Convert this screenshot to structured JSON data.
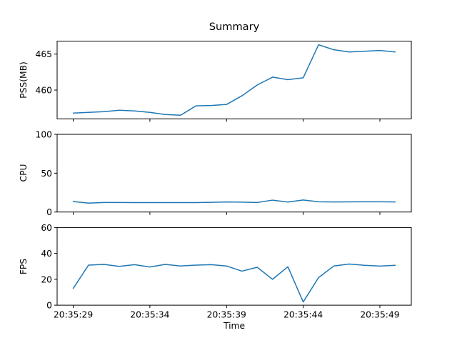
{
  "figure": {
    "background": "#ffffff",
    "text_color": "#000000"
  },
  "chart_data": {
    "type": "line",
    "title": "Summary",
    "xlabel": "Time",
    "grid": false,
    "legend": null,
    "line_color": "#1f77b4",
    "x_times": [
      "20:35:29",
      "20:35:30",
      "20:35:31",
      "20:35:32",
      "20:35:33",
      "20:35:34",
      "20:35:35",
      "20:35:36",
      "20:35:37",
      "20:35:38",
      "20:35:39",
      "20:35:40",
      "20:35:41",
      "20:35:42",
      "20:35:43",
      "20:35:44",
      "20:35:45",
      "20:35:46",
      "20:35:47",
      "20:35:48",
      "20:35:49",
      "20:35:50"
    ],
    "xtick_labels": [
      "20:35:29",
      "20:35:34",
      "20:35:39",
      "20:35:44",
      "20:35:49"
    ],
    "x_margin_fraction": 0.05,
    "subplots": [
      {
        "ylabel": "PSS(MB)",
        "ylim": [
          456.0,
          466.8
        ],
        "yticks": [
          460,
          465
        ],
        "values": [
          456.8,
          456.9,
          457.0,
          457.2,
          457.1,
          456.9,
          456.6,
          456.5,
          457.8,
          457.85,
          458.0,
          459.2,
          460.7,
          461.8,
          461.45,
          461.7,
          466.3,
          465.6,
          465.3,
          465.4,
          465.5,
          465.3
        ]
      },
      {
        "ylabel": "CPU",
        "ylim": [
          0,
          100
        ],
        "yticks": [
          0,
          50,
          100
        ],
        "values": [
          13.5,
          11.5,
          12.3,
          12.3,
          12.2,
          12.1,
          12.1,
          12.1,
          12.2,
          12.5,
          13.0,
          12.7,
          12.3,
          15.3,
          12.8,
          15.5,
          13.2,
          13.0,
          13.1,
          13.2,
          13.2,
          12.9
        ]
      },
      {
        "ylabel": "FPS",
        "ylim": [
          0,
          60
        ],
        "yticks": [
          0,
          20,
          40,
          60
        ],
        "values": [
          13,
          31,
          31.5,
          30,
          31.3,
          29.5,
          31.5,
          30.3,
          31,
          31.3,
          30.3,
          26.3,
          29.3,
          20,
          29.7,
          2.5,
          21.3,
          30.3,
          31.8,
          30.8,
          30.2,
          30.8
        ]
      }
    ]
  }
}
